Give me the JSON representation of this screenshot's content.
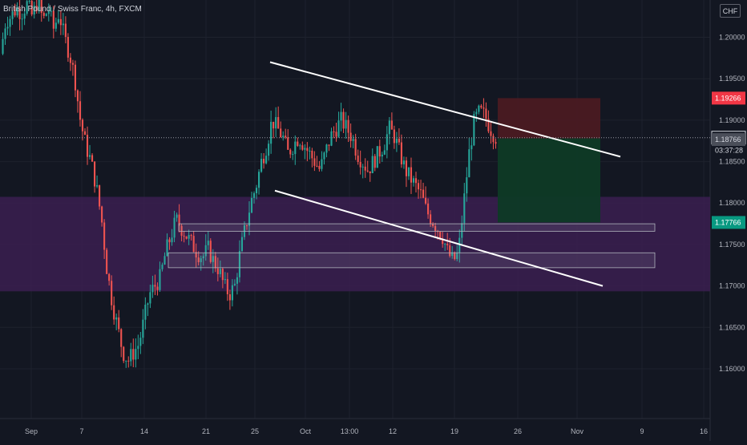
{
  "header": {
    "symbol": "British Pound / Swiss Franc",
    "interval": "4h",
    "exchange": "FXCM",
    "currency": "CHF"
  },
  "chart_data": {
    "type": "candlestick",
    "y_axis": {
      "ticks": [
        "1.20000",
        "1.19500",
        "1.19000",
        "1.18500",
        "1.18000",
        "1.17500",
        "1.17000",
        "1.16500",
        "1.16000"
      ],
      "tick_values": [
        1.2,
        1.195,
        1.19,
        1.185,
        1.18,
        1.175,
        1.17,
        1.165,
        1.16
      ],
      "range": [
        1.154,
        1.2045
      ]
    },
    "x_axis": {
      "ticks": [
        "Sep",
        "7",
        "14",
        "21",
        "25",
        "Oct",
        "13:00",
        "12",
        "19",
        "26",
        "Nov",
        "9",
        "16"
      ]
    },
    "price_labels": {
      "stop": "1.19266",
      "last": "1.18789",
      "countdown": "03:37:28",
      "prev": "1.18766",
      "target": "1.17766"
    },
    "price_values": {
      "stop": 1.19266,
      "last": 1.18789,
      "prev": 1.18766,
      "target": 1.17766
    },
    "zones": [
      {
        "name": "purple-support-zone",
        "y_top": 1.18075,
        "y_bottom": 1.16935,
        "color": "#3b1f50"
      }
    ],
    "rect_levels": [
      {
        "name": "upper-support-box",
        "y_top": 1.1775,
        "y_bottom": 1.1766
      },
      {
        "name": "lower-support-box",
        "y_top": 1.174,
        "y_bottom": 1.1722
      }
    ],
    "position": {
      "type": "short",
      "entry": 1.1878,
      "stop": 1.19266,
      "target": 1.17766,
      "stop_color": "#4a1a22",
      "target_color": "#0e3a26"
    },
    "trendlines": [
      {
        "name": "upper-trendline",
        "p1": [
          1.197
        ],
        "p2": [
          1.1856
        ]
      },
      {
        "name": "lower-trendline",
        "p1": [
          1.1815
        ],
        "p2": [
          1.17
        ]
      }
    ],
    "candle_path": [
      [
        1.198,
        1.202
      ],
      [
        1.2025,
        1.2035
      ],
      [
        1.203,
        1.204
      ],
      [
        1.2025,
        1.2045
      ],
      [
        1.202,
        1.2035
      ],
      [
        1.201,
        1.203
      ],
      [
        1.2,
        1.198
      ],
      [
        1.195,
        1.19
      ],
      [
        1.187,
        1.185
      ],
      [
        1.182,
        1.178
      ],
      [
        1.172,
        1.168
      ],
      [
        1.165,
        1.162
      ],
      [
        1.161,
        1.162
      ],
      [
        1.163,
        1.166
      ],
      [
        1.169,
        1.17
      ],
      [
        1.171,
        1.174
      ],
      [
        1.176,
        1.178
      ],
      [
        1.177,
        1.176
      ],
      [
        1.175,
        1.174
      ],
      [
        1.1735,
        1.1745
      ],
      [
        1.173,
        1.172
      ],
      [
        1.17,
        1.169
      ],
      [
        1.17,
        1.174
      ],
      [
        1.177,
        1.18
      ],
      [
        1.182,
        1.185
      ],
      [
        1.187,
        1.19
      ],
      [
        1.189,
        1.188
      ],
      [
        1.186,
        1.187
      ],
      [
        1.188,
        1.187
      ],
      [
        1.186,
        1.185
      ],
      [
        1.184,
        1.186
      ],
      [
        1.188,
        1.189
      ],
      [
        1.19,
        1.189
      ],
      [
        1.188,
        1.186
      ],
      [
        1.185,
        1.184
      ],
      [
        1.185,
        1.186
      ],
      [
        1.187,
        1.189
      ],
      [
        1.188,
        1.186
      ],
      [
        1.184,
        1.183
      ],
      [
        1.182,
        1.181
      ],
      [
        1.179,
        1.178
      ],
      [
        1.177,
        1.176
      ],
      [
        1.174,
        1.173
      ],
      [
        1.174,
        1.18
      ],
      [
        1.186,
        1.19
      ],
      [
        1.191,
        1.1905
      ],
      [
        1.189,
        1.188
      ]
    ],
    "colors": {
      "up": "#26a69a",
      "down": "#ef5350",
      "background": "#131722",
      "grid": "#1e222d",
      "axis_text": "#b2b5be"
    }
  }
}
